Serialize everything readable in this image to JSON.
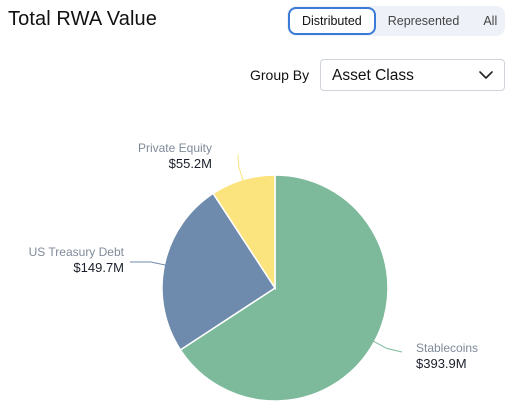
{
  "header": {
    "title": "Total RWA Value",
    "toggle": [
      "Distributed",
      "Represented",
      "All"
    ],
    "active_toggle": "Distributed"
  },
  "group_by": {
    "label": "Group By",
    "selected": "Asset Class"
  },
  "colors": {
    "Stablecoins": "#7dba9b",
    "US Treasury Debt": "#6e8bad",
    "Private Equity": "#fbe37d"
  },
  "chart_data": {
    "type": "pie",
    "slices": [
      {
        "name": "Stablecoins",
        "value": 393.9,
        "label": "$393.9M"
      },
      {
        "name": "US Treasury Debt",
        "value": 149.7,
        "label": "$149.7M"
      },
      {
        "name": "Private Equity",
        "value": 55.2,
        "label": "$55.2M"
      }
    ],
    "start_direction": "top",
    "direction": "clockwise"
  }
}
